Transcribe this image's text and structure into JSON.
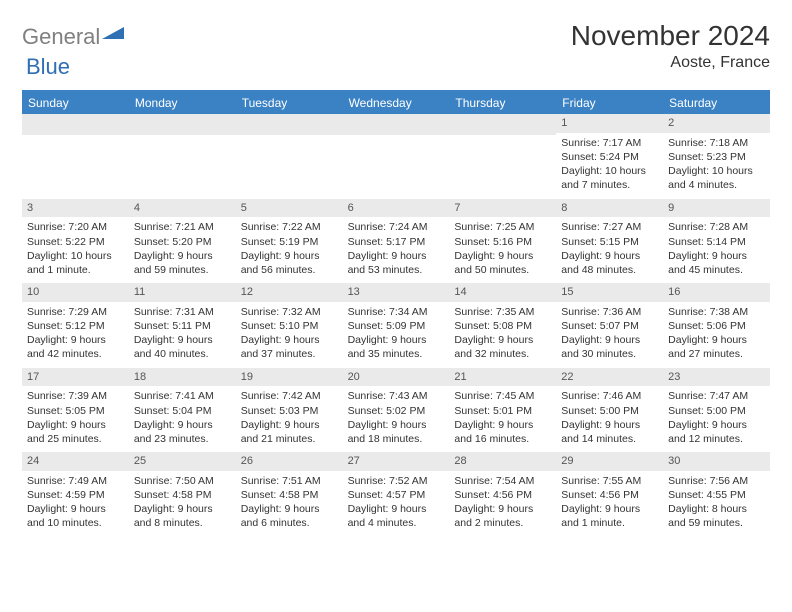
{
  "logo": {
    "gray": "General",
    "blue": "Blue"
  },
  "title": "November 2024",
  "location": "Aoste, France",
  "colors": {
    "header_bg": "#3b82c4",
    "header_text": "#ffffff",
    "date_strip": "#eaeaea",
    "text": "#333333",
    "logo_gray": "#808080",
    "logo_blue": "#2f6fb3"
  },
  "day_headers": [
    "Sunday",
    "Monday",
    "Tuesday",
    "Wednesday",
    "Thursday",
    "Friday",
    "Saturday"
  ],
  "weeks": [
    [
      {
        "date": "",
        "sunrise": "",
        "sunset": "",
        "daylight": ""
      },
      {
        "date": "",
        "sunrise": "",
        "sunset": "",
        "daylight": ""
      },
      {
        "date": "",
        "sunrise": "",
        "sunset": "",
        "daylight": ""
      },
      {
        "date": "",
        "sunrise": "",
        "sunset": "",
        "daylight": ""
      },
      {
        "date": "",
        "sunrise": "",
        "sunset": "",
        "daylight": ""
      },
      {
        "date": "1",
        "sunrise": "Sunrise: 7:17 AM",
        "sunset": "Sunset: 5:24 PM",
        "daylight": "Daylight: 10 hours and 7 minutes."
      },
      {
        "date": "2",
        "sunrise": "Sunrise: 7:18 AM",
        "sunset": "Sunset: 5:23 PM",
        "daylight": "Daylight: 10 hours and 4 minutes."
      }
    ],
    [
      {
        "date": "3",
        "sunrise": "Sunrise: 7:20 AM",
        "sunset": "Sunset: 5:22 PM",
        "daylight": "Daylight: 10 hours and 1 minute."
      },
      {
        "date": "4",
        "sunrise": "Sunrise: 7:21 AM",
        "sunset": "Sunset: 5:20 PM",
        "daylight": "Daylight: 9 hours and 59 minutes."
      },
      {
        "date": "5",
        "sunrise": "Sunrise: 7:22 AM",
        "sunset": "Sunset: 5:19 PM",
        "daylight": "Daylight: 9 hours and 56 minutes."
      },
      {
        "date": "6",
        "sunrise": "Sunrise: 7:24 AM",
        "sunset": "Sunset: 5:17 PM",
        "daylight": "Daylight: 9 hours and 53 minutes."
      },
      {
        "date": "7",
        "sunrise": "Sunrise: 7:25 AM",
        "sunset": "Sunset: 5:16 PM",
        "daylight": "Daylight: 9 hours and 50 minutes."
      },
      {
        "date": "8",
        "sunrise": "Sunrise: 7:27 AM",
        "sunset": "Sunset: 5:15 PM",
        "daylight": "Daylight: 9 hours and 48 minutes."
      },
      {
        "date": "9",
        "sunrise": "Sunrise: 7:28 AM",
        "sunset": "Sunset: 5:14 PM",
        "daylight": "Daylight: 9 hours and 45 minutes."
      }
    ],
    [
      {
        "date": "10",
        "sunrise": "Sunrise: 7:29 AM",
        "sunset": "Sunset: 5:12 PM",
        "daylight": "Daylight: 9 hours and 42 minutes."
      },
      {
        "date": "11",
        "sunrise": "Sunrise: 7:31 AM",
        "sunset": "Sunset: 5:11 PM",
        "daylight": "Daylight: 9 hours and 40 minutes."
      },
      {
        "date": "12",
        "sunrise": "Sunrise: 7:32 AM",
        "sunset": "Sunset: 5:10 PM",
        "daylight": "Daylight: 9 hours and 37 minutes."
      },
      {
        "date": "13",
        "sunrise": "Sunrise: 7:34 AM",
        "sunset": "Sunset: 5:09 PM",
        "daylight": "Daylight: 9 hours and 35 minutes."
      },
      {
        "date": "14",
        "sunrise": "Sunrise: 7:35 AM",
        "sunset": "Sunset: 5:08 PM",
        "daylight": "Daylight: 9 hours and 32 minutes."
      },
      {
        "date": "15",
        "sunrise": "Sunrise: 7:36 AM",
        "sunset": "Sunset: 5:07 PM",
        "daylight": "Daylight: 9 hours and 30 minutes."
      },
      {
        "date": "16",
        "sunrise": "Sunrise: 7:38 AM",
        "sunset": "Sunset: 5:06 PM",
        "daylight": "Daylight: 9 hours and 27 minutes."
      }
    ],
    [
      {
        "date": "17",
        "sunrise": "Sunrise: 7:39 AM",
        "sunset": "Sunset: 5:05 PM",
        "daylight": "Daylight: 9 hours and 25 minutes."
      },
      {
        "date": "18",
        "sunrise": "Sunrise: 7:41 AM",
        "sunset": "Sunset: 5:04 PM",
        "daylight": "Daylight: 9 hours and 23 minutes."
      },
      {
        "date": "19",
        "sunrise": "Sunrise: 7:42 AM",
        "sunset": "Sunset: 5:03 PM",
        "daylight": "Daylight: 9 hours and 21 minutes."
      },
      {
        "date": "20",
        "sunrise": "Sunrise: 7:43 AM",
        "sunset": "Sunset: 5:02 PM",
        "daylight": "Daylight: 9 hours and 18 minutes."
      },
      {
        "date": "21",
        "sunrise": "Sunrise: 7:45 AM",
        "sunset": "Sunset: 5:01 PM",
        "daylight": "Daylight: 9 hours and 16 minutes."
      },
      {
        "date": "22",
        "sunrise": "Sunrise: 7:46 AM",
        "sunset": "Sunset: 5:00 PM",
        "daylight": "Daylight: 9 hours and 14 minutes."
      },
      {
        "date": "23",
        "sunrise": "Sunrise: 7:47 AM",
        "sunset": "Sunset: 5:00 PM",
        "daylight": "Daylight: 9 hours and 12 minutes."
      }
    ],
    [
      {
        "date": "24",
        "sunrise": "Sunrise: 7:49 AM",
        "sunset": "Sunset: 4:59 PM",
        "daylight": "Daylight: 9 hours and 10 minutes."
      },
      {
        "date": "25",
        "sunrise": "Sunrise: 7:50 AM",
        "sunset": "Sunset: 4:58 PM",
        "daylight": "Daylight: 9 hours and 8 minutes."
      },
      {
        "date": "26",
        "sunrise": "Sunrise: 7:51 AM",
        "sunset": "Sunset: 4:58 PM",
        "daylight": "Daylight: 9 hours and 6 minutes."
      },
      {
        "date": "27",
        "sunrise": "Sunrise: 7:52 AM",
        "sunset": "Sunset: 4:57 PM",
        "daylight": "Daylight: 9 hours and 4 minutes."
      },
      {
        "date": "28",
        "sunrise": "Sunrise: 7:54 AM",
        "sunset": "Sunset: 4:56 PM",
        "daylight": "Daylight: 9 hours and 2 minutes."
      },
      {
        "date": "29",
        "sunrise": "Sunrise: 7:55 AM",
        "sunset": "Sunset: 4:56 PM",
        "daylight": "Daylight: 9 hours and 1 minute."
      },
      {
        "date": "30",
        "sunrise": "Sunrise: 7:56 AM",
        "sunset": "Sunset: 4:55 PM",
        "daylight": "Daylight: 8 hours and 59 minutes."
      }
    ]
  ]
}
